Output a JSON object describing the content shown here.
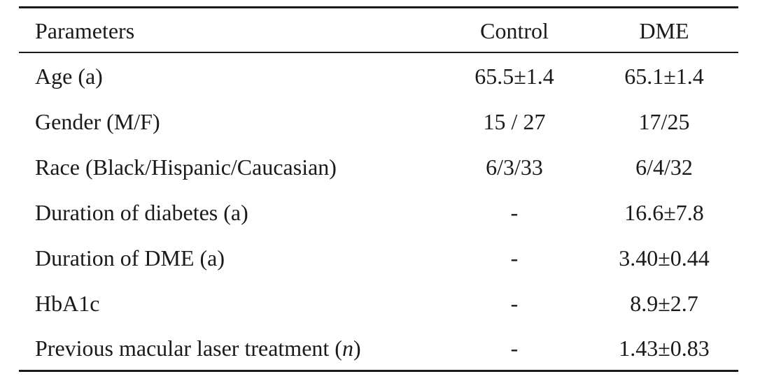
{
  "table": {
    "headers": {
      "parameters": "Parameters",
      "control": "Control",
      "dme": "DME"
    },
    "rows": [
      {
        "parameter": "Age (a)",
        "control": "65.5±1.4",
        "dme": "65.1±1.4"
      },
      {
        "parameter": "Gender (M/F)",
        "control": "15 / 27",
        "dme": "17/25"
      },
      {
        "parameter": "Race (Black/Hispanic/Caucasian)",
        "control": "6/3/33",
        "dme": "6/4/32"
      },
      {
        "parameter": "Duration of diabetes (a)",
        "control": "-",
        "dme": "16.6±7.8"
      },
      {
        "parameter": "Duration of DME (a)",
        "control": "-",
        "dme": "3.40±0.44"
      },
      {
        "parameter": "HbA1c",
        "control": "-",
        "dme": "8.9±2.7"
      },
      {
        "parameter_prefix": "Previous macular laser treatment (",
        "parameter_italic": "n",
        "parameter_suffix": ")",
        "control": "-",
        "dme": "1.43±0.83"
      }
    ]
  }
}
